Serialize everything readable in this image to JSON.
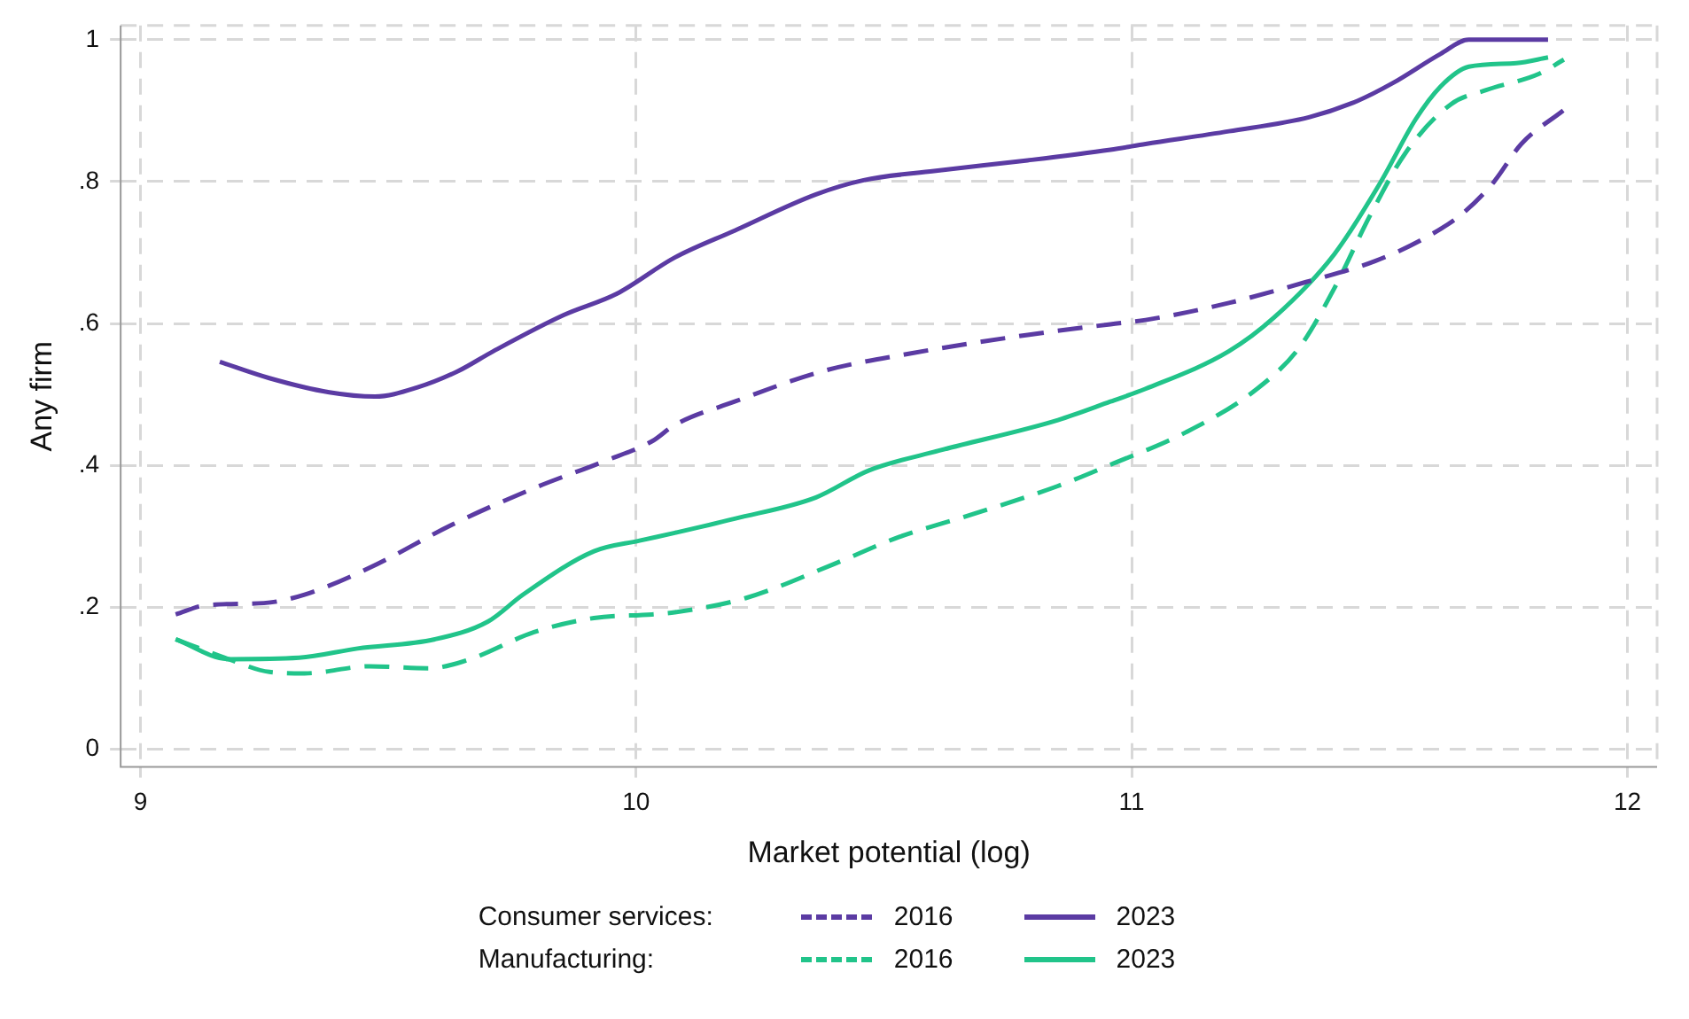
{
  "chart_data": {
    "type": "line",
    "xlabel": "Market potential (log)",
    "ylabel": "Any firm",
    "xlim": [
      8.96,
      12.06
    ],
    "ylim": [
      -0.025,
      1.02
    ],
    "xticks": [
      9,
      10,
      11,
      12
    ],
    "yticks": [
      {
        "value": 0,
        "label": "0"
      },
      {
        "value": 0.2,
        "label": ".2"
      },
      {
        "value": 0.4,
        "label": ".4"
      },
      {
        "value": 0.6,
        "label": ".6"
      },
      {
        "value": 0.8,
        "label": ".8"
      },
      {
        "value": 1,
        "label": "1"
      }
    ],
    "grid": true,
    "legend": "bottom",
    "marker": "none",
    "annotations": [
      "Consumer services:",
      "Manufacturing:"
    ],
    "series": [
      {
        "name": "2016",
        "color": "#5b3ba3",
        "line_style": "dashed",
        "x": [
          9.071,
          9.132,
          9.249,
          9.331,
          9.463,
          9.63,
          9.794,
          9.936,
          10.032,
          10.078,
          10.199,
          10.377,
          10.555,
          10.79,
          10.957,
          11.028,
          11.196,
          11.359,
          11.491,
          11.598,
          11.669,
          11.73,
          11.786,
          11.872
        ],
        "values": [
          0.19,
          0.203,
          0.206,
          0.218,
          0.256,
          0.317,
          0.368,
          0.406,
          0.434,
          0.457,
          0.49,
          0.533,
          0.558,
          0.584,
          0.599,
          0.605,
          0.629,
          0.66,
          0.688,
          0.723,
          0.756,
          0.799,
          0.853,
          0.901
        ]
      },
      {
        "name": "2023",
        "color": "#5b3ba3",
        "line_style": "solid",
        "x": [
          9.16,
          9.26,
          9.381,
          9.473,
          9.559,
          9.641,
          9.712,
          9.854,
          9.961,
          10.078,
          10.199,
          10.363,
          10.459,
          10.601,
          10.79,
          10.957,
          11.028,
          11.196,
          11.359,
          11.456,
          11.527,
          11.623,
          11.68,
          11.84
        ],
        "values": [
          0.546,
          0.523,
          0.503,
          0.497,
          0.51,
          0.533,
          0.561,
          0.612,
          0.642,
          0.693,
          0.731,
          0.782,
          0.802,
          0.815,
          0.83,
          0.845,
          0.853,
          0.871,
          0.891,
          0.914,
          0.939,
          0.98,
          1.0,
          1.0
        ]
      },
      {
        "name": "2016",
        "color": "#21c48a",
        "line_style": "dashed",
        "x": [
          9.071,
          9.178,
          9.26,
          9.331,
          9.463,
          9.58,
          9.665,
          9.794,
          9.915,
          10.032,
          10.078,
          10.221,
          10.399,
          10.53,
          10.673,
          10.851,
          10.957,
          11.11,
          11.253,
          11.338,
          11.409,
          11.48,
          11.552,
          11.644,
          11.715,
          11.822,
          11.872
        ],
        "values": [
          0.155,
          0.127,
          0.109,
          0.107,
          0.117,
          0.114,
          0.127,
          0.165,
          0.185,
          0.19,
          0.193,
          0.213,
          0.261,
          0.299,
          0.33,
          0.371,
          0.401,
          0.447,
          0.508,
          0.566,
          0.65,
          0.751,
          0.84,
          0.909,
          0.929,
          0.952,
          0.972
        ]
      },
      {
        "name": "2023",
        "color": "#21c48a",
        "line_style": "solid",
        "x": [
          9.071,
          9.178,
          9.32,
          9.438,
          9.594,
          9.701,
          9.772,
          9.915,
          10.007,
          10.078,
          10.199,
          10.363,
          10.47,
          10.612,
          10.851,
          10.957,
          11.028,
          11.196,
          11.288,
          11.409,
          11.502,
          11.573,
          11.623,
          11.68,
          11.776,
          11.84
        ],
        "values": [
          0.155,
          0.127,
          0.129,
          0.142,
          0.155,
          0.18,
          0.218,
          0.279,
          0.294,
          0.305,
          0.325,
          0.355,
          0.393,
          0.421,
          0.464,
          0.49,
          0.508,
          0.561,
          0.609,
          0.698,
          0.799,
          0.888,
          0.934,
          0.962,
          0.967,
          0.975
        ]
      }
    ]
  }
}
